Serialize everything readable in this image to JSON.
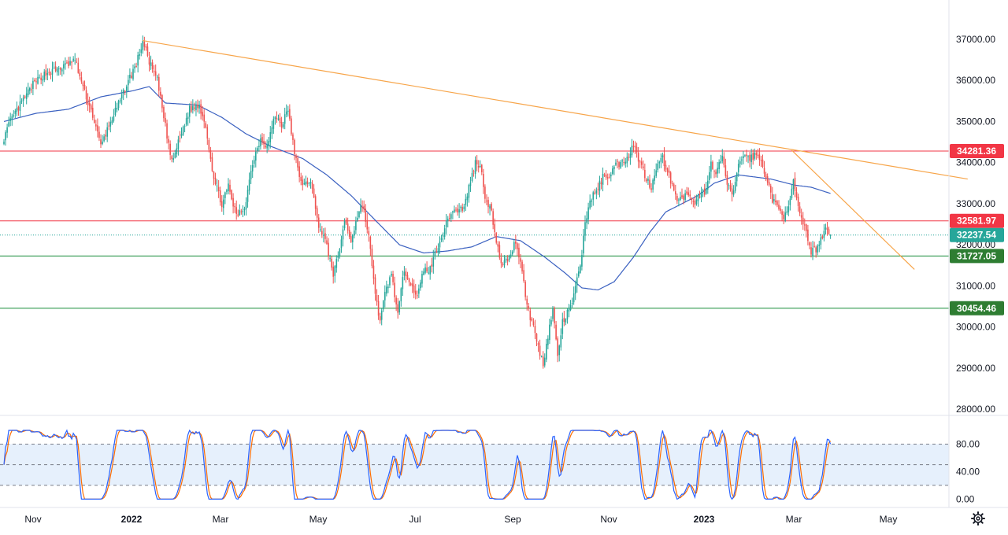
{
  "chart_data": {
    "type": "candlestick",
    "price_axis": {
      "ticks": [
        37000,
        36000,
        35000,
        34000,
        33000,
        32000,
        31000,
        30000,
        29000,
        28000
      ],
      "tick_labels": [
        "37000.00",
        "36000.00",
        "35000.00",
        "34000.00",
        "33000.00",
        "32000.00",
        "31000.00",
        "30000.00",
        "29000.00",
        "28000.00"
      ],
      "range": [
        27700,
        37400
      ]
    },
    "time_axis": {
      "labels": [
        {
          "text": "Nov",
          "bold": false
        },
        {
          "text": "2022",
          "bold": true
        },
        {
          "text": "Mar",
          "bold": false
        },
        {
          "text": "May",
          "bold": false
        },
        {
          "text": "Jul",
          "bold": false
        },
        {
          "text": "Sep",
          "bold": false
        },
        {
          "text": "Nov",
          "bold": false
        },
        {
          "text": "2023",
          "bold": true
        },
        {
          "text": "Mar",
          "bold": false
        },
        {
          "text": "May",
          "bold": false
        }
      ]
    },
    "price_path": [
      [
        0,
        34600
      ],
      [
        4,
        35000
      ],
      [
        10,
        35400
      ],
      [
        18,
        35900
      ],
      [
        25,
        36150
      ],
      [
        32,
        36250
      ],
      [
        38,
        36350
      ],
      [
        44,
        36500
      ],
      [
        50,
        35700
      ],
      [
        55,
        35150
      ],
      [
        60,
        34400
      ],
      [
        66,
        35000
      ],
      [
        72,
        35500
      ],
      [
        76,
        35900
      ],
      [
        82,
        36400
      ],
      [
        86,
        36950
      ],
      [
        91,
        36350
      ],
      [
        95,
        36000
      ],
      [
        99,
        35100
      ],
      [
        104,
        34000
      ],
      [
        109,
        34600
      ],
      [
        115,
        35300
      ],
      [
        121,
        35400
      ],
      [
        125,
        34900
      ],
      [
        130,
        33600
      ],
      [
        135,
        33000
      ],
      [
        139,
        33400
      ],
      [
        144,
        32700
      ],
      [
        149,
        32900
      ],
      [
        154,
        34000
      ],
      [
        159,
        34600
      ],
      [
        163,
        34400
      ],
      [
        168,
        35150
      ],
      [
        172,
        34900
      ],
      [
        176,
        35300
      ],
      [
        180,
        34200
      ],
      [
        185,
        33400
      ],
      [
        190,
        33600
      ],
      [
        194,
        32600
      ],
      [
        199,
        32100
      ],
      [
        204,
        31300
      ],
      [
        207,
        31700
      ],
      [
        211,
        32600
      ],
      [
        215,
        32100
      ],
      [
        219,
        32700
      ],
      [
        222,
        33000
      ],
      [
        226,
        32200
      ],
      [
        229,
        31100
      ],
      [
        233,
        30100
      ],
      [
        236,
        30800
      ],
      [
        240,
        31300
      ],
      [
        244,
        30300
      ],
      [
        248,
        31400
      ],
      [
        252,
        31100
      ],
      [
        256,
        30700
      ],
      [
        260,
        31400
      ],
      [
        264,
        31400
      ],
      [
        268,
        31900
      ],
      [
        273,
        32400
      ],
      [
        277,
        32800
      ],
      [
        281,
        32850
      ],
      [
        285,
        32900
      ],
      [
        288,
        33400
      ],
      [
        292,
        34000
      ],
      [
        295,
        33950
      ],
      [
        298,
        33200
      ],
      [
        302,
        32800
      ],
      [
        305,
        32000
      ],
      [
        309,
        31500
      ],
      [
        313,
        31700
      ],
      [
        317,
        32100
      ],
      [
        321,
        31400
      ],
      [
        324,
        30500
      ],
      [
        328,
        30000
      ],
      [
        331,
        29500
      ],
      [
        334,
        29100
      ],
      [
        337,
        29800
      ],
      [
        340,
        30400
      ],
      [
        343,
        29300
      ],
      [
        346,
        30100
      ],
      [
        350,
        30400
      ],
      [
        353,
        30750
      ],
      [
        357,
        31500
      ],
      [
        360,
        32500
      ],
      [
        363,
        33100
      ],
      [
        367,
        33300
      ],
      [
        371,
        33650
      ],
      [
        375,
        33700
      ],
      [
        379,
        33950
      ],
      [
        383,
        34000
      ],
      [
        387,
        34200
      ],
      [
        390,
        34450
      ],
      [
        393,
        34100
      ],
      [
        397,
        33700
      ],
      [
        401,
        33400
      ],
      [
        404,
        33900
      ],
      [
        408,
        34100
      ],
      [
        412,
        33700
      ],
      [
        416,
        33150
      ],
      [
        419,
        33100
      ],
      [
        423,
        33200
      ],
      [
        427,
        33000
      ],
      [
        431,
        33200
      ],
      [
        434,
        33300
      ],
      [
        438,
        33950
      ],
      [
        441,
        33700
      ],
      [
        445,
        34150
      ],
      [
        448,
        33450
      ],
      [
        451,
        33200
      ],
      [
        455,
        33900
      ],
      [
        458,
        34200
      ],
      [
        462,
        34100
      ],
      [
        466,
        34200
      ],
      [
        469,
        34000
      ],
      [
        472,
        33700
      ],
      [
        476,
        33100
      ],
      [
        479,
        32900
      ],
      [
        483,
        32700
      ],
      [
        486,
        33000
      ],
      [
        489,
        33500
      ],
      [
        493,
        32700
      ],
      [
        496,
        32400
      ],
      [
        500,
        31850
      ],
      [
        503,
        31900
      ],
      [
        506,
        32150
      ],
      [
        509,
        32400
      ],
      [
        512,
        32237
      ]
    ],
    "ma_path": [
      [
        0,
        35000
      ],
      [
        20,
        35200
      ],
      [
        40,
        35300
      ],
      [
        60,
        35600
      ],
      [
        80,
        35750
      ],
      [
        90,
        35850
      ],
      [
        100,
        35450
      ],
      [
        120,
        35400
      ],
      [
        135,
        35100
      ],
      [
        150,
        34700
      ],
      [
        165,
        34400
      ],
      [
        185,
        34100
      ],
      [
        200,
        33700
      ],
      [
        215,
        33200
      ],
      [
        230,
        32600
      ],
      [
        245,
        32000
      ],
      [
        260,
        31800
      ],
      [
        275,
        31850
      ],
      [
        290,
        31950
      ],
      [
        305,
        32200
      ],
      [
        320,
        32100
      ],
      [
        335,
        31700
      ],
      [
        348,
        31300
      ],
      [
        358,
        30950
      ],
      [
        368,
        30900
      ],
      [
        378,
        31100
      ],
      [
        390,
        31700
      ],
      [
        400,
        32300
      ],
      [
        410,
        32800
      ],
      [
        420,
        33000
      ],
      [
        430,
        33200
      ],
      [
        440,
        33500
      ],
      [
        455,
        33700
      ],
      [
        465,
        33650
      ],
      [
        475,
        33600
      ],
      [
        490,
        33450
      ],
      [
        500,
        33400
      ],
      [
        512,
        33250
      ]
    ],
    "trendlines": [
      {
        "points": [
          [
            86,
            36970
          ],
          [
            597,
            33600
          ]
        ],
        "color": "#f7a54a"
      },
      {
        "points": [
          [
            488,
            34300
          ],
          [
            564,
            31400
          ]
        ],
        "color": "#f7a54a"
      }
    ],
    "levels": [
      {
        "value": 34281.36,
        "label": "34281.36",
        "color": "#f23645",
        "tag_color": "#f23645"
      },
      {
        "value": 32581.97,
        "label": "32581.97",
        "color": "#f23645",
        "tag_color": "#f23645"
      },
      {
        "value": 31727.05,
        "label": "31727.05",
        "color": "#138a36",
        "tag_color": "#2e7d32"
      },
      {
        "value": 30454.46,
        "label": "30454.46",
        "color": "#138a36",
        "tag_color": "#2e7d32"
      }
    ],
    "last_price": {
      "value": 32237.54,
      "label": "32237.54",
      "tag_color": "#26a69a"
    },
    "oscillator": {
      "type": "stochastic",
      "ticks": [
        80,
        40,
        0
      ],
      "tick_labels": [
        "80.00",
        "40.00",
        "0.00"
      ],
      "range": [
        -3,
        108
      ],
      "band": [
        20,
        80
      ],
      "mid": 50,
      "k_color": "#2962ff",
      "d_color": "#ff6d00",
      "band_color": "#e6f0fc"
    },
    "colors": {
      "up": "#26a69a",
      "down": "#ef5350",
      "ma": "#3a60c0",
      "grid": "#ffffff"
    }
  },
  "toolbar": {
    "settings_icon": "gear-icon"
  }
}
